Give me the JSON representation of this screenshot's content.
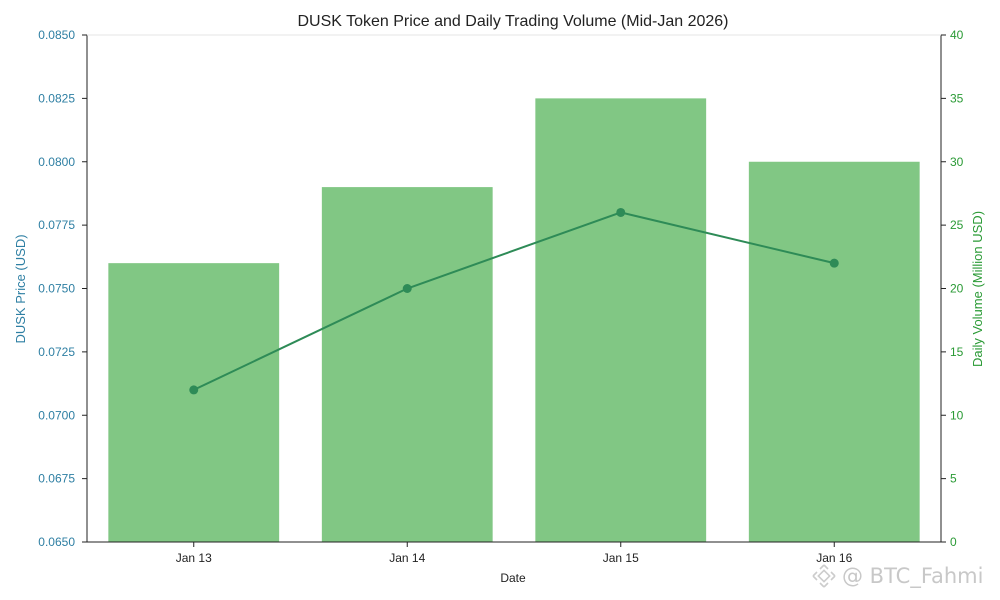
{
  "chart_data": {
    "type": "bar+line",
    "title": "DUSK Token Price and Daily Trading Volume (Mid-Jan 2026)",
    "xlabel": "Date",
    "categories": [
      "Jan 13",
      "Jan 14",
      "Jan 15",
      "Jan 16"
    ],
    "y_left": {
      "label": "DUSK Price (USD)",
      "lim": [
        0.065,
        0.085
      ],
      "ticks": [
        "0.0650",
        "0.0675",
        "0.0700",
        "0.0725",
        "0.0750",
        "0.0775",
        "0.0800",
        "0.0825",
        "0.0850"
      ],
      "color": "#2e7fa3"
    },
    "y_right": {
      "label": "Daily Volume (Million USD)",
      "lim": [
        0,
        40
      ],
      "ticks": [
        "0",
        "5",
        "10",
        "15",
        "20",
        "25",
        "30",
        "35",
        "40"
      ],
      "color": "#2a9a35"
    },
    "series": [
      {
        "kind": "bar",
        "axis": "right",
        "values": [
          22,
          28,
          35,
          30
        ],
        "color": "#81c784"
      },
      {
        "kind": "line",
        "axis": "left",
        "values": [
          0.071,
          0.075,
          0.078,
          0.076
        ],
        "color": "#2e8b57"
      }
    ],
    "grid": false
  },
  "watermark": "@ BTC_Fahmi"
}
